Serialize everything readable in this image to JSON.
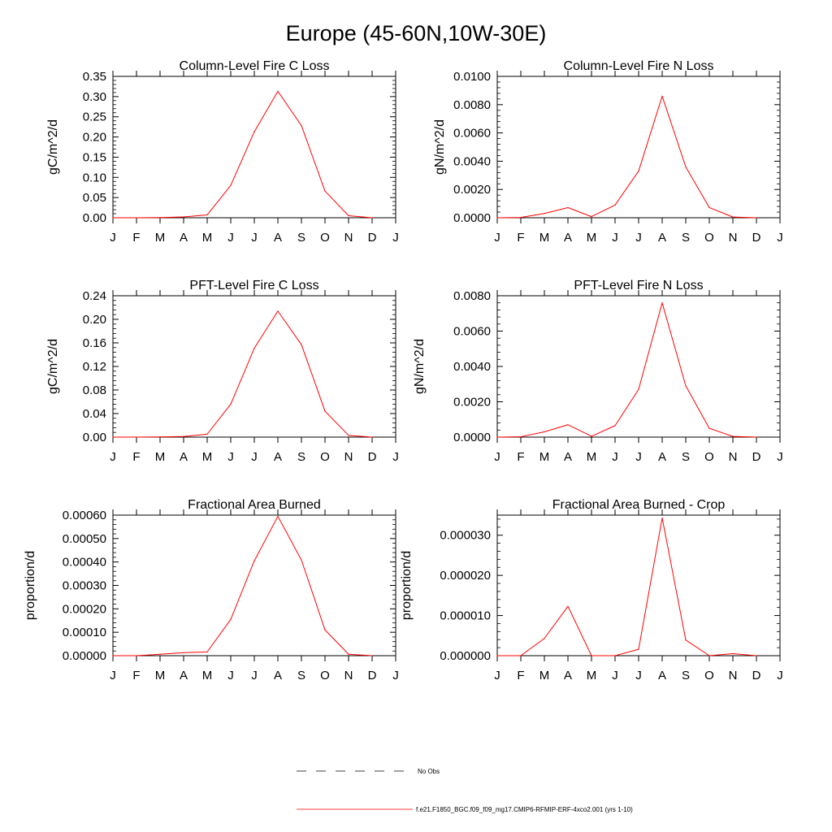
{
  "figure_title": "Europe (45-60N,10W-30E)",
  "months": [
    "J",
    "F",
    "M",
    "A",
    "M",
    "J",
    "J",
    "A",
    "S",
    "O",
    "N",
    "D",
    "J"
  ],
  "line_color": "#ff0000",
  "legend": {
    "entries": [
      {
        "label": "No Obs",
        "style": "dashed",
        "color": "#000000"
      },
      {
        "label": "f.e21.F1850_BGC.f09_f09_mg17.CMIP6-RFMIP-ERF-4xco2.001 (yrs 1-10)",
        "style": "solid",
        "color": "#ff0000"
      }
    ]
  },
  "chart_data": [
    {
      "type": "line",
      "title": "Column-Level Fire C Loss",
      "ylabel": "gC/m^2/d",
      "ylim": [
        0,
        0.35
      ],
      "yticks": [
        0,
        0.05,
        0.1,
        0.15,
        0.2,
        0.25,
        0.3,
        0.35
      ],
      "ytick_labels": [
        "0.00",
        "0.05",
        "0.10",
        "0.15",
        "0.20",
        "0.25",
        "0.30",
        "0.35"
      ],
      "x": [
        1,
        2,
        3,
        4,
        5,
        6,
        7,
        8,
        9,
        10,
        11,
        12
      ],
      "series": [
        {
          "name": "f.e21.F1850_BGC.f09_f09_mg17.CMIP6-RFMIP-ERF-4xco2.001 (yrs 1-10)",
          "values": [
            0.0,
            0.0,
            0.0005,
            0.002,
            0.007,
            0.08,
            0.213,
            0.313,
            0.228,
            0.066,
            0.005,
            0.0
          ]
        }
      ]
    },
    {
      "type": "line",
      "title": "Column-Level Fire N Loss",
      "ylabel": "gN/m^2/d",
      "ylim": [
        0,
        0.01
      ],
      "yticks": [
        0,
        0.002,
        0.004,
        0.006,
        0.008,
        0.01
      ],
      "ytick_labels": [
        "0.0000",
        "0.0020",
        "0.0040",
        "0.0060",
        "0.0080",
        "0.0100"
      ],
      "x": [
        1,
        2,
        3,
        4,
        5,
        6,
        7,
        8,
        9,
        10,
        11,
        12
      ],
      "series": [
        {
          "name": "f.e21.F1850_BGC.f09_f09_mg17.CMIP6-RFMIP-ERF-4xco2.001 (yrs 1-10)",
          "values": [
            0.0,
            2e-05,
            0.0003,
            0.00072,
            8e-05,
            0.0009,
            0.0033,
            0.0086,
            0.0036,
            0.00072,
            5e-05,
            0.0
          ]
        }
      ]
    },
    {
      "type": "line",
      "title": "PFT-Level Fire C Loss",
      "ylabel": "gC/m^2/d",
      "ylim": [
        0,
        0.24
      ],
      "yticks": [
        0,
        0.04,
        0.08,
        0.12,
        0.16,
        0.2,
        0.24
      ],
      "ytick_labels": [
        "0.00",
        "0.04",
        "0.08",
        "0.12",
        "0.16",
        "0.20",
        "0.24"
      ],
      "x": [
        1,
        2,
        3,
        4,
        5,
        6,
        7,
        8,
        9,
        10,
        11,
        12
      ],
      "series": [
        {
          "name": "f.e21.F1850_BGC.f09_f09_mg17.CMIP6-RFMIP-ERF-4xco2.001 (yrs 1-10)",
          "values": [
            0.0,
            0.0,
            0.0003,
            0.001,
            0.005,
            0.056,
            0.151,
            0.214,
            0.157,
            0.044,
            0.003,
            0.0
          ]
        }
      ]
    },
    {
      "type": "line",
      "title": "PFT-Level Fire N Loss",
      "ylabel": "gN/m^2/d",
      "ylim": [
        0,
        0.008
      ],
      "yticks": [
        0,
        0.002,
        0.004,
        0.006,
        0.008
      ],
      "ytick_labels": [
        "0.0000",
        "0.0020",
        "0.0040",
        "0.0060",
        "0.0080"
      ],
      "x": [
        1,
        2,
        3,
        4,
        5,
        6,
        7,
        8,
        9,
        10,
        11,
        12
      ],
      "series": [
        {
          "name": "f.e21.F1850_BGC.f09_f09_mg17.CMIP6-RFMIP-ERF-4xco2.001 (yrs 1-10)",
          "values": [
            0.0,
            2e-05,
            0.0003,
            0.0007,
            5e-05,
            0.00065,
            0.0027,
            0.0076,
            0.0029,
            0.0005,
            4e-05,
            0.0
          ]
        }
      ]
    },
    {
      "type": "line",
      "title": "Fractional Area Burned",
      "ylabel": "proportion/d",
      "ylim": [
        0,
        0.0006
      ],
      "yticks": [
        0,
        0.0001,
        0.0002,
        0.0003,
        0.0004,
        0.0005,
        0.0006
      ],
      "ytick_labels": [
        "0.00000",
        "0.00010",
        "0.00020",
        "0.00030",
        "0.00040",
        "0.00050",
        "0.00060"
      ],
      "x": [
        1,
        2,
        3,
        4,
        5,
        6,
        7,
        8,
        9,
        10,
        11,
        12
      ],
      "series": [
        {
          "name": "f.e21.F1850_BGC.f09_f09_mg17.CMIP6-RFMIP-ERF-4xco2.001 (yrs 1-10)",
          "values": [
            0.0,
            0.0,
            6e-06,
            1.3e-05,
            1.6e-05,
            0.000155,
            0.000405,
            0.000595,
            0.000408,
            0.00011,
            6e-06,
            0.0
          ]
        }
      ]
    },
    {
      "type": "line",
      "title": "Fractional Area Burned - Crop",
      "ylabel": "proportion/d",
      "ylim": [
        0,
        3.5e-05
      ],
      "yticks": [
        0,
        1e-05,
        2e-05,
        3e-05
      ],
      "ytick_labels": [
        "0.000000",
        "0.000010",
        "0.000020",
        "0.000030"
      ],
      "x": [
        1,
        2,
        3,
        4,
        5,
        6,
        7,
        8,
        9,
        10,
        11,
        12
      ],
      "series": [
        {
          "name": "f.e21.F1850_BGC.f09_f09_mg17.CMIP6-RFMIP-ERF-4xco2.001 (yrs 1-10)",
          "values": [
            0.0,
            0.0,
            4.3e-06,
            1.23e-05,
            0.0,
            0.0,
            1.6e-06,
            3.43e-05,
            3.9e-06,
            0.0,
            5e-07,
            0.0
          ]
        }
      ]
    }
  ]
}
